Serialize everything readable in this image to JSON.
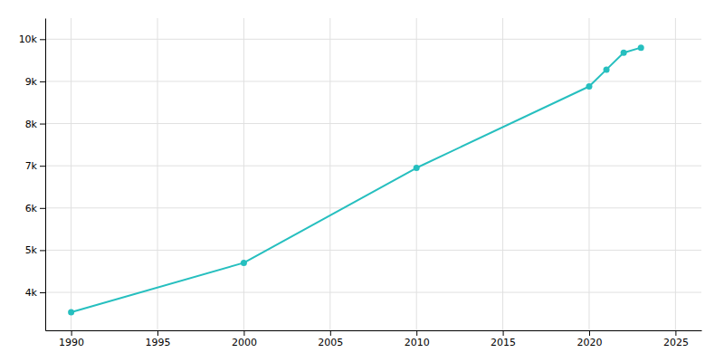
{
  "chart_data": {
    "type": "line",
    "x": [
      1990,
      2000,
      2010,
      2020,
      2021,
      2022,
      2023
    ],
    "values": [
      3530,
      4700,
      6950,
      8880,
      9280,
      9680,
      9800
    ],
    "color": "#26bfbf",
    "marker": "circle",
    "xlim": [
      1988.5,
      2026.5
    ],
    "ylim": [
      3100,
      10500
    ],
    "xticks": [
      1990,
      1995,
      2000,
      2005,
      2010,
      2015,
      2020,
      2025
    ],
    "yticks": [
      {
        "value": 4000,
        "label": "4k"
      },
      {
        "value": 5000,
        "label": "5k"
      },
      {
        "value": 6000,
        "label": "6k"
      },
      {
        "value": 7000,
        "label": "7k"
      },
      {
        "value": 8000,
        "label": "8k"
      },
      {
        "value": 9000,
        "label": "9k"
      },
      {
        "value": 10000,
        "label": "10k"
      }
    ],
    "grid": true
  }
}
